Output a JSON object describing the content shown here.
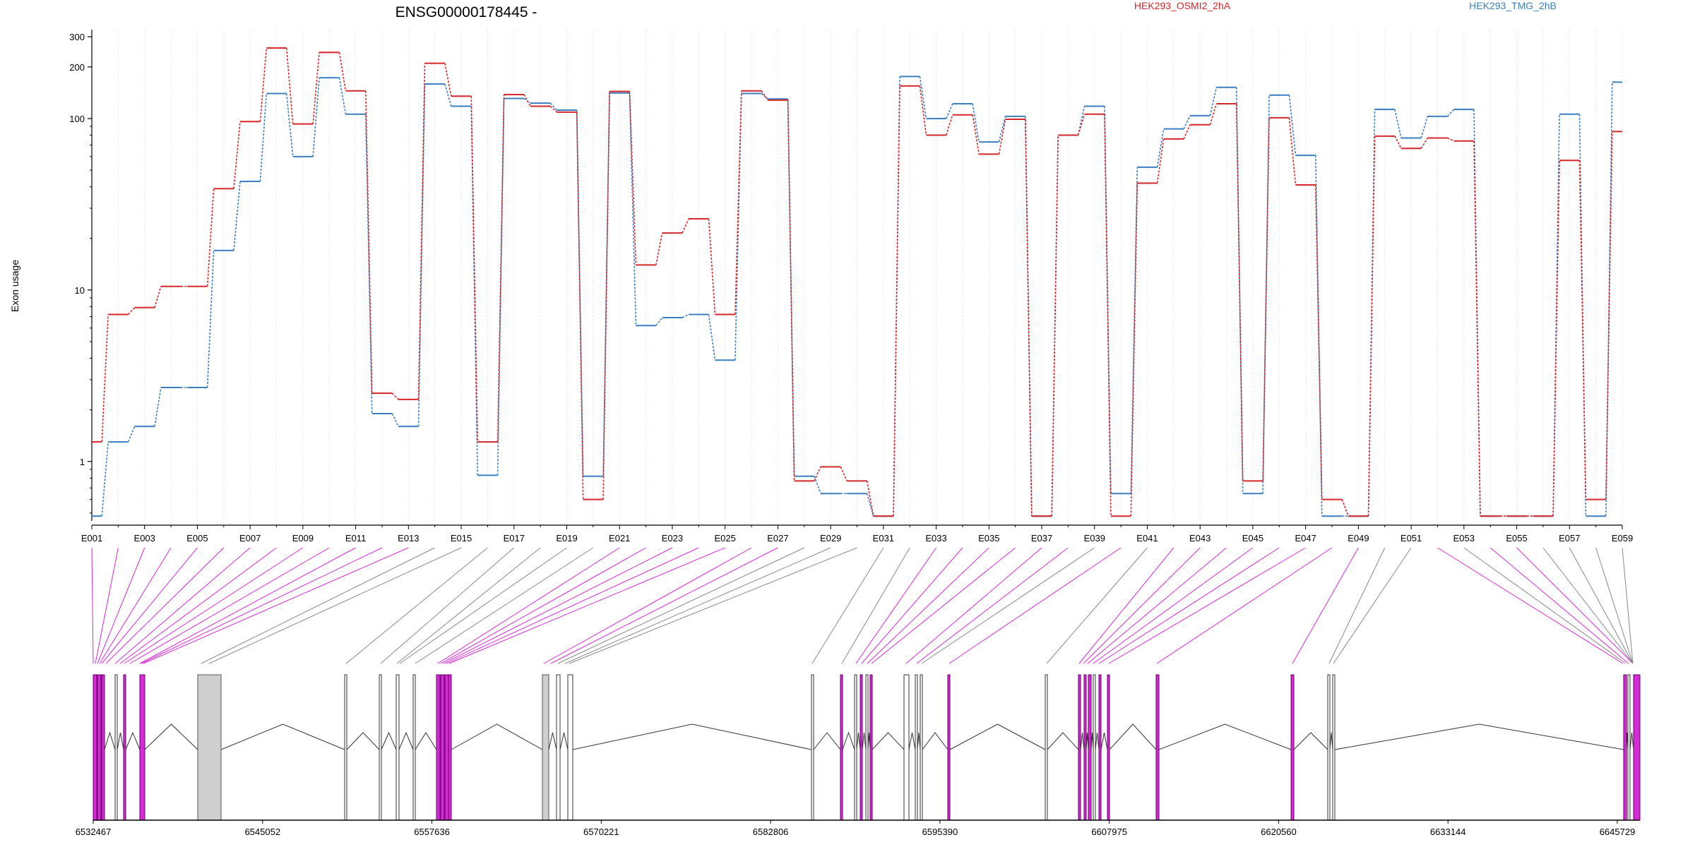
{
  "title": "ENSG00000178445 -",
  "ylabel": "Exon usage",
  "colors": {
    "seriesA": "#d62728",
    "seriesB": "#3b7fc0",
    "highlight": "#d62ad6",
    "normal": "#888888",
    "exonFill": "#cfcfcf"
  },
  "chart_data": {
    "type": "line",
    "title": "ENSG00000178445 -",
    "ylabel": "Exon usage",
    "yscale": "log",
    "ylim": [
      0.45,
      330
    ],
    "yticks": [
      1,
      10,
      100,
      200,
      300
    ],
    "ytick_labels": [
      "1",
      "10",
      "100",
      "200",
      "300"
    ],
    "grid": "vertical",
    "legend_placement": "top",
    "categories": [
      "E001",
      "E002",
      "E003",
      "E004",
      "E005",
      "E006",
      "E007",
      "E008",
      "E009",
      "E010",
      "E011",
      "E012",
      "E013",
      "E014",
      "E015",
      "E016",
      "E017",
      "E018",
      "E019",
      "E020",
      "E021",
      "E022",
      "E023",
      "E024",
      "E025",
      "E026",
      "E027",
      "E028",
      "E029",
      "E030",
      "E031",
      "E032",
      "E033",
      "E034",
      "E035",
      "E036",
      "E037",
      "E038",
      "E039",
      "E040",
      "E041",
      "E042",
      "E043",
      "E044",
      "E045",
      "E046",
      "E047",
      "E048",
      "E049",
      "E050",
      "E051",
      "E052",
      "E053",
      "E054",
      "E055",
      "E056",
      "E057",
      "E058",
      "E059"
    ],
    "xtick_labels": [
      "E001",
      "E003",
      "E005",
      "E007",
      "E009",
      "E011",
      "E013",
      "E015",
      "E017",
      "E019",
      "E021",
      "E023",
      "E025",
      "E027",
      "E029",
      "E031",
      "E033",
      "E035",
      "E037",
      "E039",
      "E041",
      "E043",
      "E045",
      "E047",
      "E049",
      "E051",
      "E053",
      "E055",
      "E057",
      "E059"
    ],
    "series": [
      {
        "name": "HEK293_OSMI2_2hA",
        "color": "#d62728",
        "values": [
          1.3,
          7.2,
          7.9,
          10.5,
          10.5,
          39,
          96,
          258,
          93,
          243,
          145,
          2.5,
          2.3,
          210,
          135,
          1.3,
          138,
          118,
          109,
          0.6,
          144,
          14,
          21.5,
          26,
          7.2,
          145,
          128,
          0.77,
          0.93,
          0.77,
          0.48,
          155,
          80,
          105,
          62,
          99,
          0.48,
          80,
          106,
          0.48,
          42,
          76,
          92,
          122,
          0.77,
          101,
          41,
          0.6,
          0.48,
          79,
          67,
          77,
          74,
          0.48,
          0.48,
          0.48,
          57,
          0.6,
          84
        ]
      },
      {
        "name": "HEK293_TMG_2hB",
        "color": "#3b7fc0",
        "values": [
          0.48,
          1.3,
          1.6,
          2.7,
          2.7,
          17,
          43,
          140,
          60,
          173,
          106,
          1.9,
          1.6,
          159,
          118,
          0.83,
          131,
          123,
          112,
          0.82,
          141,
          6.2,
          6.9,
          7.2,
          3.9,
          140,
          130,
          0.82,
          0.65,
          0.65,
          0.48,
          176,
          100,
          122,
          73,
          103,
          0.48,
          80,
          118,
          0.65,
          52,
          87,
          104,
          152,
          0.65,
          137,
          61,
          0.48,
          0.48,
          113,
          77,
          103,
          113,
          0.48,
          0.48,
          0.48,
          106,
          0.48,
          163
        ]
      }
    ],
    "genomic_axis": {
      "tick_labels": [
        "6532467",
        "6545052",
        "6557636",
        "6570221",
        "6582806",
        "6595390",
        "6607975",
        "6620560",
        "6633144",
        "6645729"
      ]
    }
  }
}
